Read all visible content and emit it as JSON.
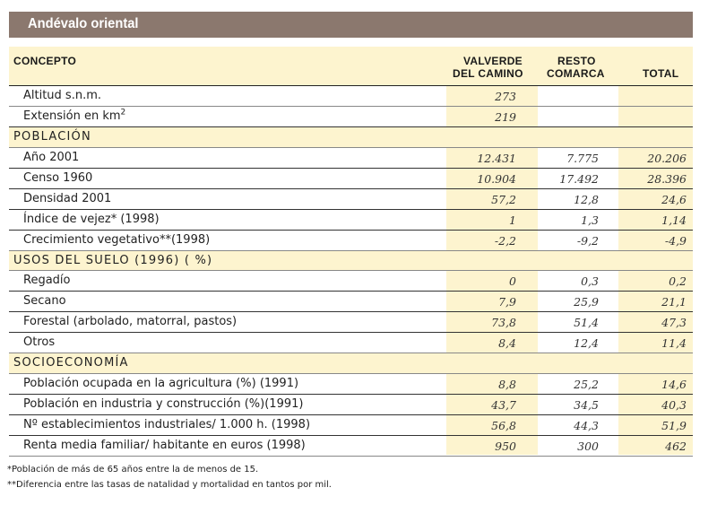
{
  "title": "Andévalo oriental",
  "header": {
    "concepto": "CONCEPTO",
    "valverde_l1": "VALVERDE",
    "valverde_l2": "DEL CAMINO",
    "resto_l1": "RESTO",
    "resto_l2": "COMARCA",
    "total": "TOTAL"
  },
  "rows": [
    {
      "type": "data",
      "label": "Altitud s.n.m.",
      "valverde": "273",
      "resto": "",
      "total": ""
    },
    {
      "type": "data",
      "label": "Extensión en km",
      "sup": "2",
      "valverde": "219",
      "resto": "",
      "total": ""
    },
    {
      "type": "section",
      "label": "POBLACIÓN"
    },
    {
      "type": "data",
      "label": "Año  2001",
      "valverde": "12.431",
      "resto": "7.775",
      "total": "20.206"
    },
    {
      "type": "data",
      "label": "Censo  1960",
      "valverde": "10.904",
      "resto": "17.492",
      "total": "28.396"
    },
    {
      "type": "data",
      "label": "Densidad   2001",
      "valverde": "57,2",
      "resto": "12,8",
      "total": "24,6"
    },
    {
      "type": "data",
      "label": "Índice de vejez* (1998)",
      "valverde": "1",
      "resto": "1,3",
      "total": "1,14"
    },
    {
      "type": "data",
      "label": "Crecimiento vegetativo**(1998)",
      "valverde": "-2,2",
      "resto": "-9,2",
      "total": "-4,9"
    },
    {
      "type": "section",
      "label": "USOS DEL SUELO  (1996) ( %)"
    },
    {
      "type": "data",
      "label": "Regadío",
      "valverde": "0",
      "resto": "0,3",
      "total": "0,2"
    },
    {
      "type": "data",
      "label": "Secano",
      "valverde": "7,9",
      "resto": "25,9",
      "total": "21,1"
    },
    {
      "type": "data",
      "label": "Forestal (arbolado, matorral, pastos)",
      "valverde": "73,8",
      "resto": "51,4",
      "total": "47,3"
    },
    {
      "type": "data",
      "label": "Otros",
      "valverde": "8,4",
      "resto": "12,4",
      "total": "11,4"
    },
    {
      "type": "section",
      "label": "SOCIOECONOMÍA"
    },
    {
      "type": "data",
      "label": "Población ocupada en la agricultura (%) (1991)",
      "valverde": "8,8",
      "resto": "25,2",
      "total": "14,6"
    },
    {
      "type": "data",
      "label": "Población en industria y construcción (%)(1991)",
      "valverde": "43,7",
      "resto": "34,5",
      "total": "40,3"
    },
    {
      "type": "data",
      "label": "Nº  establecimientos industriales/ 1.000 h. (1998)",
      "valverde": "56,8",
      "resto": "44,3",
      "total": "51,9"
    },
    {
      "type": "data",
      "label": "Renta media familiar/ habitante en euros (1998)",
      "valverde": "950",
      "resto": "300",
      "total": "462"
    }
  ],
  "footnotes": [
    "*Población de más de 65 años entre la de menos de 15.",
    "**Diferencia entre las tasas de natalidad y mortalidad en tantos por mil."
  ]
}
